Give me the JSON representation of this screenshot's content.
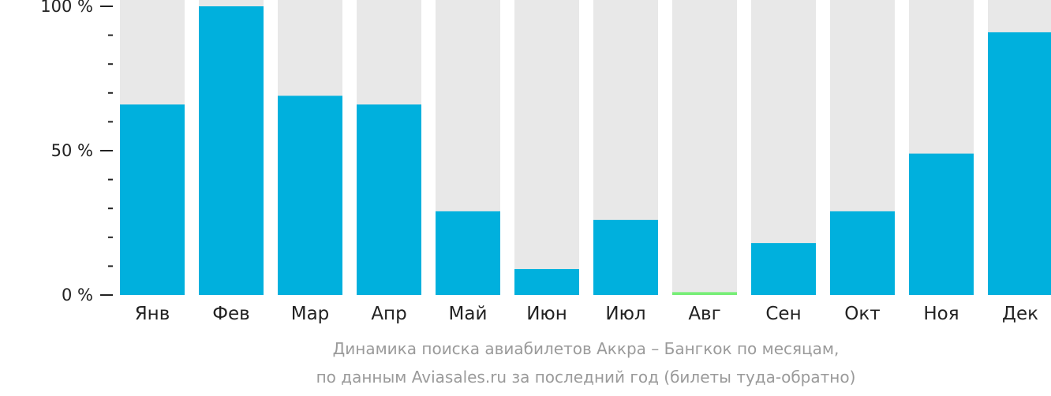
{
  "chart_data": {
    "type": "bar",
    "categories": [
      "Янв",
      "Фев",
      "Мар",
      "Апр",
      "Май",
      "Июн",
      "Июл",
      "Авг",
      "Сен",
      "Окт",
      "Ноя",
      "Дек"
    ],
    "values": [
      66,
      100,
      69,
      66,
      29,
      9,
      26,
      1,
      18,
      29,
      49,
      91
    ],
    "ylim": [
      0,
      100
    ],
    "yticks": [
      {
        "value": 0,
        "label": "0 %"
      },
      {
        "value": 50,
        "label": "50 %"
      },
      {
        "value": 100,
        "label": "100 %"
      }
    ],
    "minor_step": 10,
    "highlight_index": 7,
    "colors": {
      "bar": "#00b0dd",
      "highlight": "#77ee77",
      "track": "#e8e8e8",
      "axis": "#222222"
    },
    "grid": false,
    "legend": "none",
    "caption_lines": [
      "Динамика поиска авиабилетов Аккра – Бангкок по месяцам,",
      "по данным Aviasales.ru за последний год (билеты туда-обратно)"
    ]
  }
}
